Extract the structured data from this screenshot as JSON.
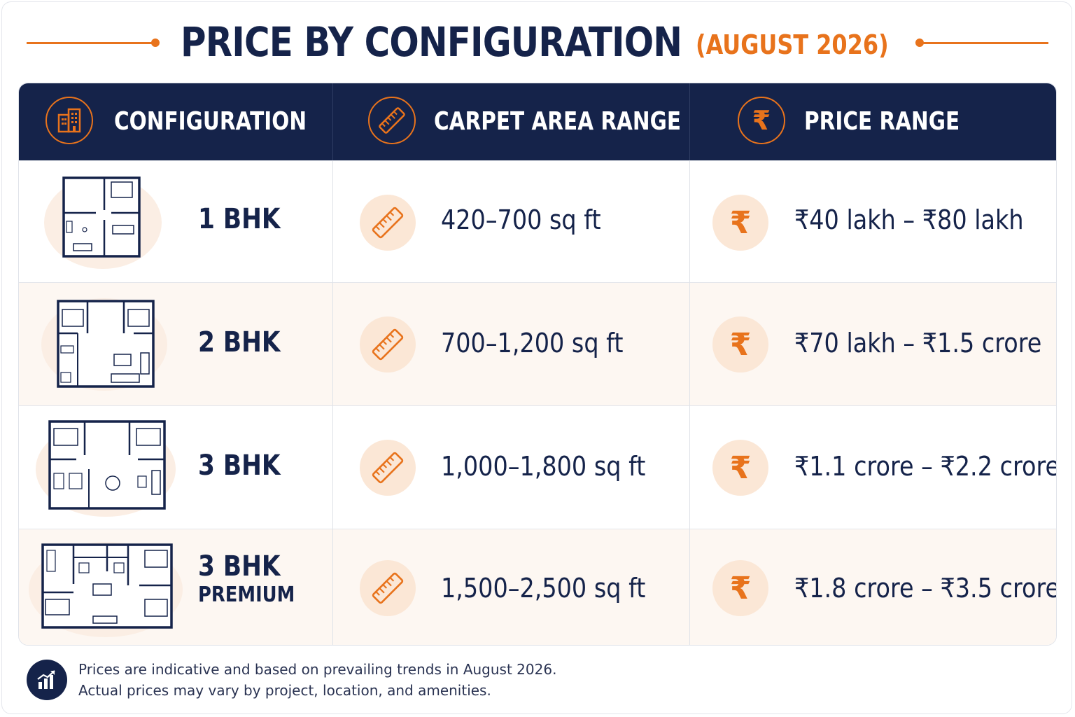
{
  "title": "PRICE BY CONFIGURATION",
  "subtitle": "(AUGUST 2026)",
  "colors": {
    "navy": "#15234a",
    "accent": "#e8731c",
    "row_alt": "#fdf7f2"
  },
  "table": {
    "headers": [
      {
        "label": "CONFIGURATION",
        "icon": "building-icon"
      },
      {
        "label": "CARPET AREA RANGE",
        "icon": "ruler-icon"
      },
      {
        "label": "PRICE RANGE",
        "icon": "rupee-icon"
      }
    ],
    "rows": [
      {
        "config": "1 BHK",
        "config_sub": "",
        "area": "420–700 sq ft",
        "price": "₹40 lakh – ₹80 lakh",
        "plan_icon": "floor-plan-1bhk-icon"
      },
      {
        "config": "2 BHK",
        "config_sub": "",
        "area": "700–1,200 sq ft",
        "price": "₹70 lakh – ₹1.5 crore",
        "plan_icon": "floor-plan-2bhk-icon"
      },
      {
        "config": "3 BHK",
        "config_sub": "",
        "area": "1,000–1,800 sq ft",
        "price": "₹1.1 crore – ₹2.2 crore",
        "plan_icon": "floor-plan-3bhk-icon"
      },
      {
        "config": "3 BHK",
        "config_sub": "PREMIUM",
        "area": "1,500–2,500 sq ft",
        "price": "₹1.8 crore – ₹3.5 crore",
        "plan_icon": "floor-plan-3bhk-premium-icon"
      }
    ]
  },
  "footer": {
    "icon": "growth-chart-icon",
    "line1": "Prices are indicative and based on prevailing trends in August 2026.",
    "line2": "Actual prices may vary by project, location, and amenities."
  }
}
